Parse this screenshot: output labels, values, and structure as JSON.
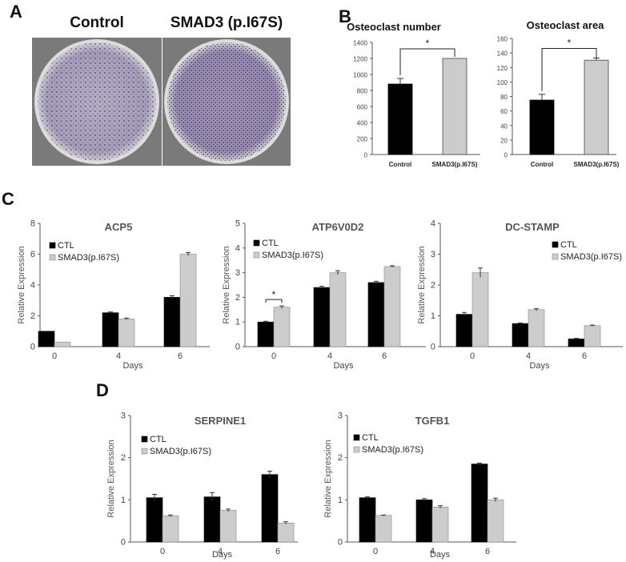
{
  "figure": {
    "panel_letters": [
      "A",
      "B",
      "C",
      "D"
    ],
    "panel_a": {
      "titles": [
        "Control",
        "SMAD3 (p.I67S)"
      ]
    }
  },
  "colors": {
    "ctl": "#000000",
    "smad3": "#cccccc",
    "axis": "#555555",
    "title_gray": "#555555"
  },
  "chart_data": [
    {
      "id": "osteoclast-number",
      "type": "bar",
      "title": "Osteoclast number",
      "categories": [
        "Control",
        "SMAD3(p.I67S)"
      ],
      "values": [
        880,
        1200
      ],
      "errors": [
        70,
        0
      ],
      "ylim": [
        0,
        1400
      ],
      "yticks": [
        "0",
        "200",
        "400",
        "600",
        "800",
        "1000",
        "1200",
        "1400"
      ],
      "significance": "*",
      "xlabel": "",
      "ylabel": ""
    },
    {
      "id": "osteoclast-area",
      "type": "bar",
      "title": "Osteoclast area",
      "categories": [
        "Control",
        "SMAD3(p.I67S)"
      ],
      "values": [
        75,
        130
      ],
      "errors": [
        8,
        3
      ],
      "ylim": [
        0,
        160
      ],
      "yticks": [
        "0",
        "20",
        "40",
        "60",
        "80",
        "100",
        "120",
        "140",
        "160"
      ],
      "significance": "*",
      "xlabel": "",
      "ylabel": ""
    },
    {
      "id": "acp5",
      "type": "bar",
      "title": "ACP5",
      "categories": [
        "0",
        "4",
        "6"
      ],
      "xlabel": "Days",
      "ylabel": "Relative Expression",
      "ylim": [
        0,
        8
      ],
      "yticks": [
        "0",
        "2",
        "4",
        "6",
        "8"
      ],
      "legend": [
        "CTL",
        "SMAD3(p.I67S)"
      ],
      "series": [
        {
          "name": "CTL",
          "values": [
            1.0,
            2.2,
            3.2
          ],
          "errors": [
            0,
            0.05,
            0.1
          ]
        },
        {
          "name": "SMAD3(p.I67S)",
          "values": [
            0.3,
            1.8,
            6.0
          ],
          "errors": [
            0,
            0.05,
            0.1
          ]
        }
      ]
    },
    {
      "id": "atp6v0d2",
      "type": "bar",
      "title": "ATP6V0D2",
      "categories": [
        "0",
        "4",
        "6"
      ],
      "xlabel": "Days",
      "ylabel": "Relative Expression",
      "ylim": [
        0,
        5
      ],
      "yticks": [
        "0",
        "1",
        "2",
        "3",
        "4",
        "5"
      ],
      "legend": [
        "CTL",
        "SMAD3(p.I67S)"
      ],
      "significance": "*",
      "series": [
        {
          "name": "CTL",
          "values": [
            1.0,
            2.4,
            2.6
          ],
          "errors": [
            0.03,
            0.05,
            0.05
          ]
        },
        {
          "name": "SMAD3(p.I67S)",
          "values": [
            1.6,
            3.0,
            3.25
          ],
          "errors": [
            0.05,
            0.08,
            0.03
          ]
        }
      ]
    },
    {
      "id": "dc-stamp",
      "type": "bar",
      "title": "DC-STAMP",
      "categories": [
        "0",
        "4",
        "6"
      ],
      "xlabel": "Days",
      "ylabel": "Relative Expression",
      "ylim": [
        0,
        4
      ],
      "yticks": [
        "0",
        "1",
        "2",
        "3",
        "4"
      ],
      "legend": [
        "CTL",
        "SMAD3(p.I67S)"
      ],
      "series": [
        {
          "name": "CTL",
          "values": [
            1.05,
            0.75,
            0.25
          ],
          "errors": [
            0.06,
            0.02,
            0.02
          ]
        },
        {
          "name": "SMAD3(p.I67S)",
          "values": [
            2.4,
            1.2,
            0.68
          ],
          "errors": [
            0.15,
            0.03,
            0.02
          ]
        }
      ]
    },
    {
      "id": "serpine1",
      "type": "bar",
      "title": "SERPINE1",
      "categories": [
        "0",
        "4",
        "6"
      ],
      "xlabel": "Days",
      "ylabel": "Relative Expression",
      "ylim": [
        0,
        3
      ],
      "yticks": [
        "0",
        "1",
        "2",
        "3"
      ],
      "legend": [
        "CTL",
        "SMAD3(p.I67S)"
      ],
      "series": [
        {
          "name": "CTL",
          "values": [
            1.05,
            1.07,
            1.6
          ],
          "errors": [
            0.08,
            0.1,
            0.08
          ]
        },
        {
          "name": "SMAD3(p.I67S)",
          "values": [
            0.62,
            0.75,
            0.45
          ],
          "errors": [
            0.02,
            0.03,
            0.03
          ]
        }
      ]
    },
    {
      "id": "tgfb1",
      "type": "bar",
      "title": "TGFB1",
      "categories": [
        "0",
        "4",
        "6"
      ],
      "xlabel": "Days",
      "ylabel": "Relative Expression",
      "ylim": [
        0,
        3
      ],
      "yticks": [
        "0",
        "1",
        "2",
        "3"
      ],
      "legend": [
        "CTL",
        "SMAD3(p.I67S)"
      ],
      "series": [
        {
          "name": "CTL",
          "values": [
            1.05,
            1.0,
            1.85
          ],
          "errors": [
            0.02,
            0.03,
            0.02
          ]
        },
        {
          "name": "SMAD3(p.I67S)",
          "values": [
            0.63,
            0.83,
            1.0
          ],
          "errors": [
            0.01,
            0.03,
            0.04
          ]
        }
      ]
    }
  ]
}
